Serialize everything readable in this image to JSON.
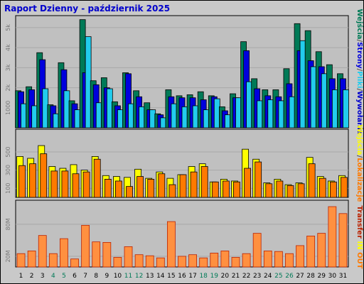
{
  "colors": {
    "background": "#c9c9c9",
    "plot": "#c0c0c0",
    "grid": "#a8a8a8",
    "title": "#0000cc",
    "visits": "#007a57",
    "pages": "#0000dd",
    "files": "#22ccee",
    "hits_stack": "#0000cc",
    "in": "#ffff00",
    "out": "#ff7a00",
    "transfer_bar": "#ff9040",
    "transfer_edge": "#bb2200",
    "weekend_label": "#007a57",
    "day_label": "#000080"
  },
  "chart_data": {
    "type": "bar",
    "title": "Raport Dzienny -  październik 2025",
    "categories": [
      "1",
      "2",
      "3",
      "4",
      "5",
      "6",
      "7",
      "8",
      "9",
      "10",
      "11",
      "12",
      "13",
      "14",
      "15",
      "16",
      "17",
      "18",
      "19",
      "20",
      "21",
      "22",
      "23",
      "24",
      "25",
      "26",
      "27",
      "28",
      "29",
      "30",
      "31"
    ],
    "weekend_days": [
      "4",
      "5",
      "11",
      "12",
      "18",
      "19",
      "25",
      "26"
    ],
    "panels": [
      {
        "id": "hits",
        "yticks": [
          "5k",
          "4k",
          "3k",
          "2k",
          "1000"
        ],
        "ylim": [
          0,
          5600
        ],
        "right_label": {
          "parts": [
            "Wejścia",
            "/",
            "Strony",
            "/",
            "Pliki",
            "/",
            "Wywołania"
          ]
        },
        "series": [
          {
            "name": "Wejścia",
            "color": "#007a57",
            "values": [
              1850,
              2050,
              3750,
              1150,
              3250,
              1350,
              5400,
              2350,
              2500,
              1300,
              2750,
              1850,
              1250,
              700,
              1900,
              1600,
              1650,
              1800,
              1600,
              1050,
              1700,
              4300,
              2450,
              1900,
              1900,
              2950,
              5200,
              4850,
              3800,
              3150,
              2700
            ]
          },
          {
            "name": "Strony",
            "color": "#0000dd",
            "values": [
              1800,
              1900,
              3400,
              1100,
              2900,
              1200,
              2750,
              2150,
              2000,
              1100,
              2700,
              1550,
              900,
              650,
              1550,
              1500,
              1500,
              1400,
              1550,
              850,
              1500,
              3850,
              1950,
              1600,
              1550,
              2200,
              3850,
              3350,
              3050,
              2450,
              2450
            ]
          },
          {
            "name": "Pliki",
            "color": "#22ccee",
            "values": [
              1200,
              1100,
              1950,
              700,
              1850,
              900,
              4550,
              1250,
              1950,
              900,
              1200,
              1050,
              900,
              500,
              1200,
              1050,
              1100,
              900,
              1450,
              650,
              1500,
              2300,
              1350,
              1400,
              1350,
              1550,
              4350,
              3050,
              2700,
              1900,
              1900
            ]
          }
        ]
      },
      {
        "id": "sites",
        "yticks": [
          "500",
          "300",
          "100"
        ],
        "ylim": [
          0,
          750
        ],
        "right_label": {
          "parts": [
            "Wejścia",
            "/",
            "Lokalizacje"
          ]
        },
        "series": [
          {
            "name": "Wejścia",
            "color": "#ffff00",
            "values": [
              450,
              430,
              570,
              340,
              320,
              360,
              300,
              450,
              240,
              230,
              220,
              310,
              210,
              280,
              210,
              250,
              340,
              370,
              170,
              200,
              180,
              530,
              420,
              160,
              200,
              140,
              160,
              440,
              230,
              180,
              240
            ]
          },
          {
            "name": "Lokalizacje",
            "color": "#ff7a00",
            "values": [
              350,
              370,
              480,
              290,
              290,
              260,
              280,
              420,
              200,
              180,
              120,
              230,
              200,
              260,
              140,
              250,
              280,
              340,
              170,
              180,
              170,
              320,
              390,
              150,
              180,
              130,
              150,
              370,
              210,
              170,
              220
            ]
          }
        ]
      },
      {
        "id": "transfer",
        "yticks": [
          "80M",
          "20M"
        ],
        "ylim": [
          0,
          125
        ],
        "right_label": {
          "parts": [
            "Transfer",
            " IN",
            " OUT"
          ]
        },
        "series": [
          {
            "name": "Transfer",
            "color": "#ff9040",
            "values": [
              25,
              30,
              59,
              25,
              53,
              15,
              78,
              47,
              46,
              18,
              38,
              23,
              21,
              17,
              85,
              20,
              23,
              17,
              26,
              30,
              18,
              25,
              63,
              30,
              29,
              25,
              40,
              58,
              63,
              113,
              100
            ]
          }
        ]
      }
    ]
  }
}
